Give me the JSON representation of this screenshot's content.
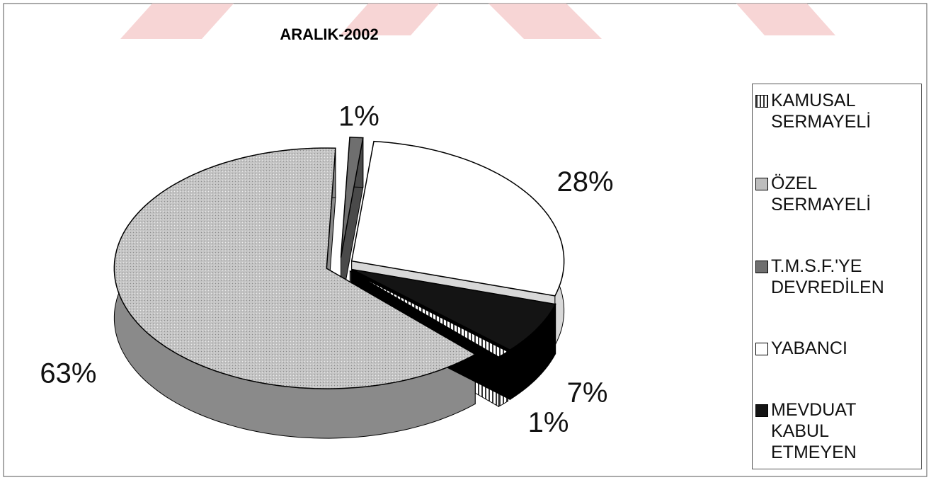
{
  "chart_data": {
    "type": "pie",
    "title": "ARALIK-2002",
    "categories": [
      "KAMUSAL SERMAYELİ",
      "ÖZEL SERMAYELİ",
      "T.M.S.F.'YE DEVREDİLEN",
      "YABANCI",
      "MEVDUAT KABUL ETMEYEN"
    ],
    "values": [
      1,
      63,
      1,
      28,
      7
    ],
    "value_labels": [
      "1%",
      "63%",
      "1%",
      "28%",
      "7%"
    ],
    "colors": [
      "url(#hatch)",
      "url(#dots)",
      "#6f6f6f",
      "#ffffff",
      "#141414"
    ],
    "legend": "right"
  }
}
